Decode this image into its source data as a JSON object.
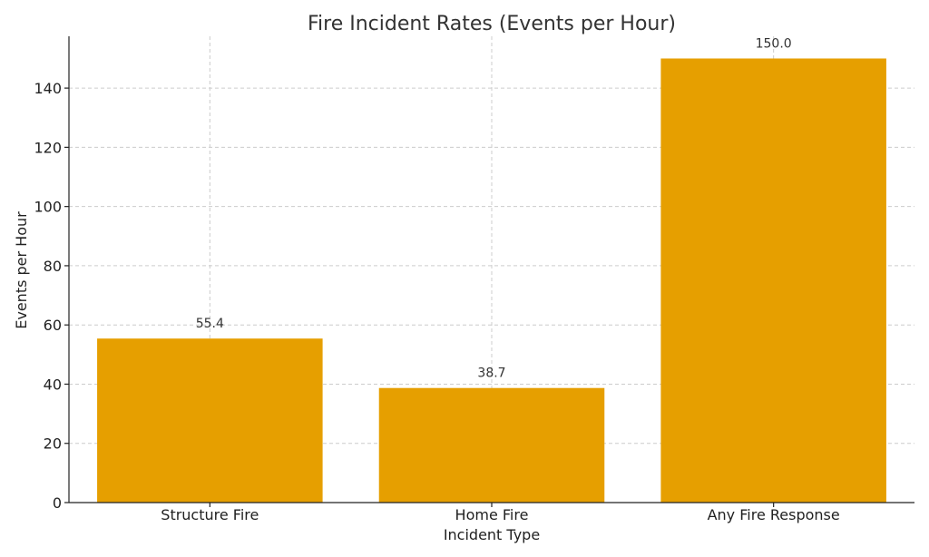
{
  "chart_data": {
    "type": "bar",
    "title": "Fire Incident Rates (Events per Hour)",
    "xlabel": "Incident Type",
    "ylabel": "Events per Hour",
    "categories": [
      "Structure Fire",
      "Home Fire",
      "Any Fire Response"
    ],
    "values": [
      55.4,
      38.7,
      150.0
    ],
    "value_labels": [
      "55.4",
      "38.7",
      "150.0"
    ],
    "ylim": [
      0,
      157.5
    ],
    "yticks": [
      0,
      20,
      40,
      60,
      80,
      100,
      120,
      140
    ],
    "grid": true,
    "bar_color": "#e69f00"
  }
}
